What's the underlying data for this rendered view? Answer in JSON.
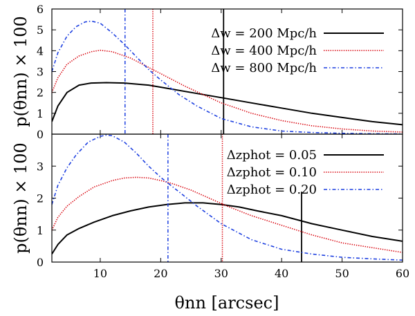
{
  "chart_data": [
    {
      "type": "line",
      "panel": "top",
      "ylabel": "p(θnn) × 100",
      "xlim": [
        2,
        60
      ],
      "ylim": [
        0,
        6
      ],
      "yticks": [
        0,
        1,
        2,
        3,
        4,
        5,
        6
      ],
      "legend_position": "top-right",
      "series": [
        {
          "name": "Δw = 200 Mpc/h",
          "color": "#000000",
          "style": "solid",
          "vline": 30.4,
          "x": [
            2,
            3,
            4.5,
            6.5,
            8.5,
            11,
            14,
            18,
            22,
            26,
            30,
            35,
            40,
            45,
            50,
            55,
            60
          ],
          "y": [
            0.6,
            1.35,
            2.0,
            2.35,
            2.45,
            2.47,
            2.45,
            2.35,
            2.15,
            1.95,
            1.75,
            1.5,
            1.25,
            1.0,
            0.8,
            0.6,
            0.45
          ]
        },
        {
          "name": "Δw = 400 Mpc/h",
          "color": "#d8000a",
          "style": "dotted",
          "vline": 18.7,
          "x": [
            2,
            3,
            4.5,
            6.5,
            8.5,
            10,
            12,
            15,
            18,
            21,
            24,
            27,
            30,
            35,
            40,
            45,
            50,
            55,
            60
          ],
          "y": [
            2.0,
            2.7,
            3.35,
            3.75,
            3.95,
            4.02,
            3.95,
            3.65,
            3.2,
            2.75,
            2.3,
            1.9,
            1.5,
            1.0,
            0.65,
            0.4,
            0.25,
            0.15,
            0.1
          ]
        },
        {
          "name": "Δw = 800 Mpc/h",
          "color": "#1c3fe0",
          "style": "dashdot",
          "vline": 14.1,
          "x": [
            2,
            3,
            4.5,
            6,
            7.5,
            8.5,
            10,
            12,
            14,
            16,
            18,
            20,
            23,
            26,
            30,
            35,
            40,
            45,
            50,
            55,
            60
          ],
          "y": [
            3.0,
            3.9,
            4.7,
            5.15,
            5.38,
            5.42,
            5.32,
            4.85,
            4.3,
            3.7,
            3.1,
            2.6,
            1.9,
            1.35,
            0.75,
            0.35,
            0.15,
            0.08,
            0.04,
            0.02,
            0.01
          ]
        }
      ]
    },
    {
      "type": "line",
      "panel": "bottom",
      "ylabel": "p(θnn) × 100",
      "xlabel": "θnn [arcsec]",
      "xlim": [
        2,
        60
      ],
      "ylim": [
        0,
        4
      ],
      "yticks": [
        0,
        1,
        2,
        3
      ],
      "xticks": [
        10,
        20,
        30,
        40,
        50,
        60
      ],
      "legend_position": "top-right",
      "series": [
        {
          "name": "Δzphot = 0.05",
          "color": "#000000",
          "style": "solid",
          "vline": 43.3,
          "x": [
            2,
            3,
            4.5,
            6.5,
            9,
            12,
            15,
            18,
            21,
            24,
            27,
            30,
            33,
            36,
            40,
            45,
            50,
            55,
            60
          ],
          "y": [
            0.25,
            0.55,
            0.85,
            1.05,
            1.25,
            1.45,
            1.6,
            1.72,
            1.8,
            1.85,
            1.85,
            1.8,
            1.72,
            1.6,
            1.45,
            1.2,
            1.0,
            0.8,
            0.65
          ]
        },
        {
          "name": "Δzphot = 0.10",
          "color": "#d8000a",
          "style": "dotted",
          "vline": 30.2,
          "x": [
            2,
            3,
            4.5,
            6.5,
            9,
            12,
            14,
            16,
            18,
            20,
            22,
            25,
            28,
            31,
            35,
            40,
            45,
            50,
            55,
            60
          ],
          "y": [
            1.0,
            1.4,
            1.75,
            2.05,
            2.35,
            2.55,
            2.63,
            2.65,
            2.63,
            2.55,
            2.45,
            2.25,
            2.0,
            1.75,
            1.45,
            1.15,
            0.85,
            0.6,
            0.45,
            0.3
          ]
        },
        {
          "name": "Δzphot = 0.20",
          "color": "#1c3fe0",
          "style": "dashdot",
          "vline": 21.2,
          "x": [
            2,
            3,
            4.5,
            6,
            8,
            10,
            11,
            12,
            14,
            16,
            18,
            20,
            23,
            26,
            30,
            35,
            40,
            45,
            50,
            55,
            60
          ],
          "y": [
            1.8,
            2.4,
            2.95,
            3.35,
            3.75,
            3.93,
            3.97,
            3.95,
            3.75,
            3.4,
            3.0,
            2.65,
            2.2,
            1.75,
            1.2,
            0.7,
            0.4,
            0.25,
            0.15,
            0.1,
            0.06
          ]
        }
      ]
    }
  ]
}
